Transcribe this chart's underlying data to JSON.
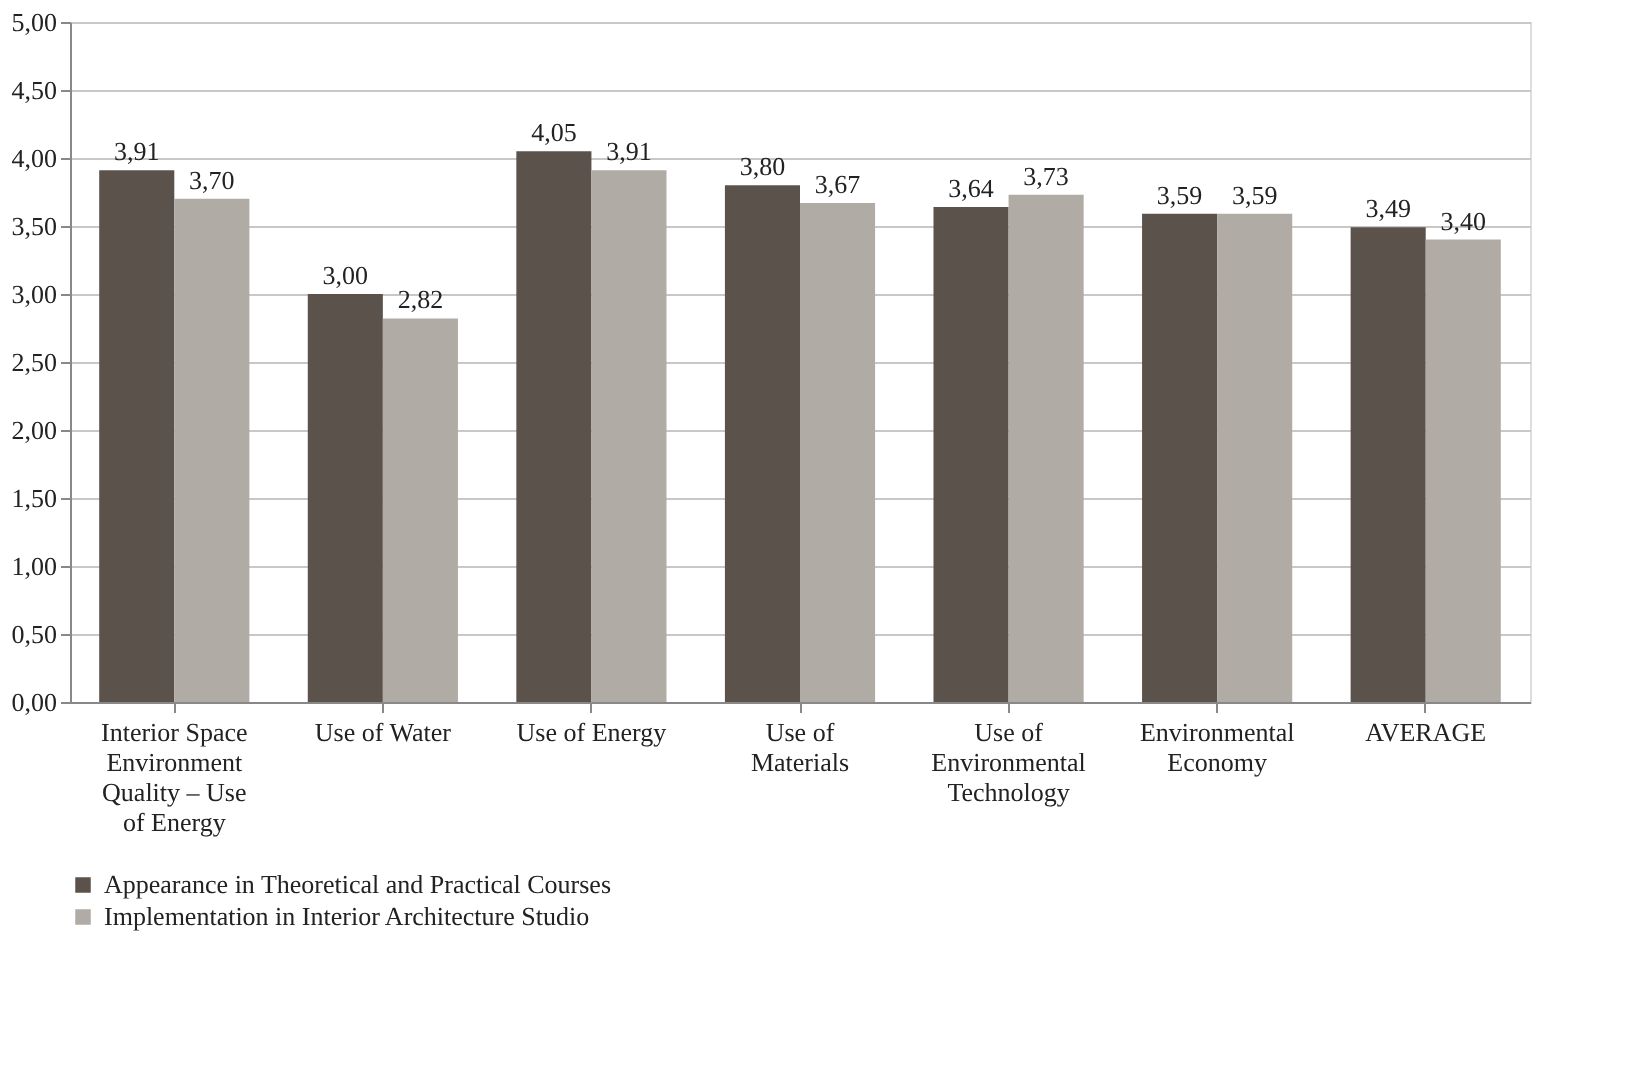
{
  "chart_data": {
    "type": "bar",
    "categories": [
      "Interior Space Environment Quality – Use of Energy",
      "Use of Water",
      "Use of Energy",
      "Use of Materials",
      "Use of Environmental Technology",
      "Environmental Economy",
      "AVERAGE"
    ],
    "series": [
      {
        "name": "Appearance in Theoretical and Practical Courses",
        "color": "#5b524c",
        "values": [
          3.91,
          3.0,
          4.05,
          3.8,
          3.64,
          3.59,
          3.49
        ],
        "value_labels": [
          "3,91",
          "3,00",
          "4,05",
          "3,80",
          "3,64",
          "3,59",
          "3,49"
        ]
      },
      {
        "name": "Implementation in Interior Architecture Studio",
        "color": "#b1aba6",
        "values": [
          3.7,
          2.82,
          3.91,
          3.67,
          3.73,
          3.59,
          3.4
        ],
        "value_labels": [
          "3,70",
          "2,82",
          "3,91",
          "3,67",
          "3,73",
          "3,59",
          "3,40"
        ]
      }
    ],
    "ylim": [
      0,
      5
    ],
    "yticks": [
      {
        "value": 0,
        "label": "0,00"
      },
      {
        "value": 0.5,
        "label": "0,50"
      },
      {
        "value": 1,
        "label": "1,00"
      },
      {
        "value": 1.5,
        "label": "1,50"
      },
      {
        "value": 2,
        "label": "2,00"
      },
      {
        "value": 2.5,
        "label": "2,50"
      },
      {
        "value": 3,
        "label": "3,00"
      },
      {
        "value": 3.5,
        "label": "3,50"
      },
      {
        "value": 4,
        "label": "4,00"
      },
      {
        "value": 4.5,
        "label": "4,50"
      },
      {
        "value": 5,
        "label": "5,00"
      }
    ],
    "grid": "y",
    "legend": "bottom"
  }
}
